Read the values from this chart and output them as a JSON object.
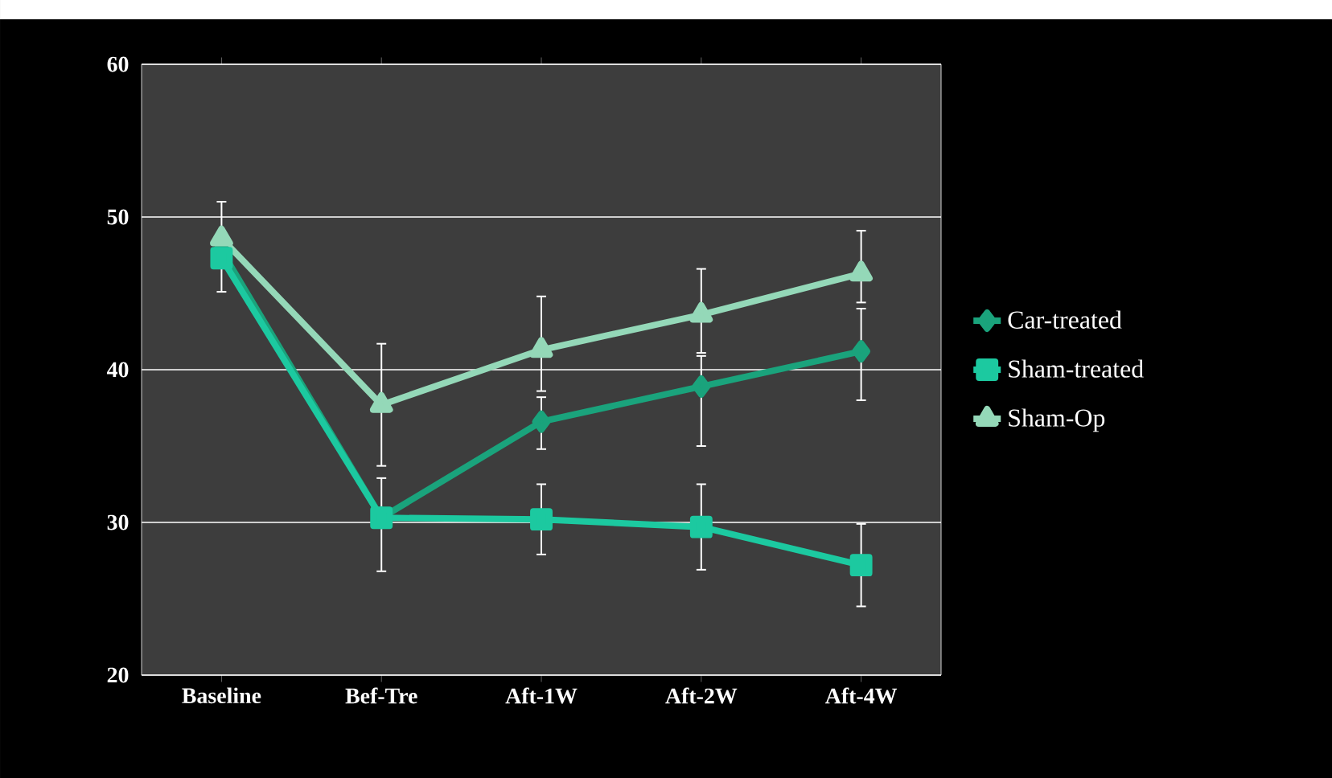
{
  "chart_data": {
    "type": "line",
    "categories": [
      "Baseline",
      "Bef-Tre",
      "Aft-1W",
      "Aft-2W",
      "Aft-4W"
    ],
    "series": [
      {
        "name": "Car-treated",
        "color": "#1aa37c",
        "marker": "diamond",
        "values": [
          47.8,
          30.3,
          36.6,
          38.9,
          41.2
        ],
        "errors": [
          null,
          [
            26.8,
            32.9
          ],
          [
            34.8,
            38.2
          ],
          [
            35,
            40.9
          ],
          [
            38,
            44
          ]
        ]
      },
      {
        "name": "Sham-treated",
        "color": "#1cc9a0",
        "marker": "square",
        "values": [
          47.3,
          30.3,
          30.2,
          29.7,
          27.2
        ],
        "errors": [
          null,
          null,
          2.3,
          2.8,
          2.7
        ]
      },
      {
        "name": "Sham-Op",
        "color": "#94d8b8",
        "marker": "triangle",
        "values": [
          48.6,
          37.7,
          41.3,
          43.6,
          46.3
        ],
        "errors": [
          [
            45.1,
            51
          ],
          4.0,
          [
            38.6,
            44.8
          ],
          [
            41.1,
            46.6
          ],
          [
            44.4,
            49.1
          ]
        ]
      }
    ],
    "ylim": [
      20,
      60
    ],
    "yticks": [
      20,
      30,
      40,
      50,
      60
    ],
    "grid": "y",
    "legend": "right"
  }
}
